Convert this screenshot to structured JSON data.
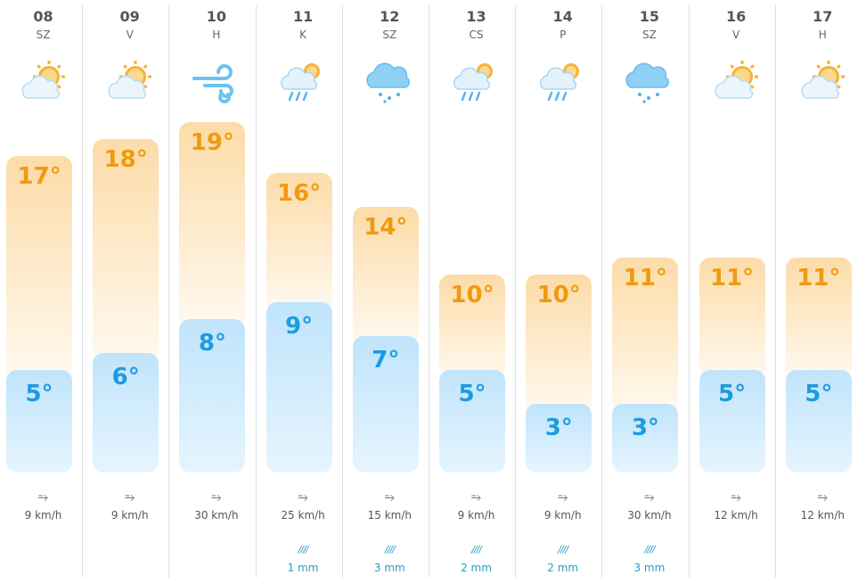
{
  "days": [
    {
      "day": "08",
      "weekday": "SZ",
      "icon": "partly-cloudy-icon",
      "high": "17°",
      "low": "5°",
      "high_value": 17,
      "low_value": 5,
      "wind": "9 km/h",
      "rain": ""
    },
    {
      "day": "09",
      "weekday": "V",
      "icon": "partly-cloudy-icon",
      "high": "18°",
      "low": "6°",
      "high_value": 18,
      "low_value": 6,
      "wind": "9 km/h",
      "rain": ""
    },
    {
      "day": "10",
      "weekday": "H",
      "icon": "wind-icon",
      "high": "19°",
      "low": "8°",
      "high_value": 19,
      "low_value": 8,
      "wind": "30 km/h",
      "rain": ""
    },
    {
      "day": "11",
      "weekday": "K",
      "icon": "sun-rain-cloud-icon",
      "high": "16°",
      "low": "9°",
      "high_value": 16,
      "low_value": 9,
      "wind": "25 km/h",
      "rain": "1 mm"
    },
    {
      "day": "12",
      "weekday": "SZ",
      "icon": "rain-cloud-icon",
      "high": "14°",
      "low": "7°",
      "high_value": 14,
      "low_value": 7,
      "wind": "15 km/h",
      "rain": "3 mm"
    },
    {
      "day": "13",
      "weekday": "CS",
      "icon": "sun-rain-cloud-icon",
      "high": "10°",
      "low": "5°",
      "high_value": 10,
      "low_value": 5,
      "wind": "9 km/h",
      "rain": "2 mm"
    },
    {
      "day": "14",
      "weekday": "P",
      "icon": "sun-rain-cloud-icon",
      "high": "10°",
      "low": "3°",
      "high_value": 10,
      "low_value": 3,
      "wind": "9 km/h",
      "rain": "2 mm"
    },
    {
      "day": "15",
      "weekday": "SZ",
      "icon": "rain-cloud-icon",
      "high": "11°",
      "low": "3°",
      "high_value": 11,
      "low_value": 3,
      "wind": "30 km/h",
      "rain": "3 mm"
    },
    {
      "day": "16",
      "weekday": "V",
      "icon": "partly-cloudy-icon",
      "high": "11°",
      "low": "5°",
      "high_value": 11,
      "low_value": 5,
      "wind": "12 km/h",
      "rain": ""
    },
    {
      "day": "17",
      "weekday": "H",
      "icon": "partly-cloudy-icon",
      "high": "11°",
      "low": "5°",
      "high_value": 11,
      "low_value": 5,
      "wind": "12 km/h",
      "rain": ""
    }
  ],
  "wind_icon_glyph": "⥱",
  "rain_icon_glyph": "////",
  "colors": {
    "high": "#f09a10",
    "low": "#1c9be0",
    "rain": "#2a9dc4"
  }
}
